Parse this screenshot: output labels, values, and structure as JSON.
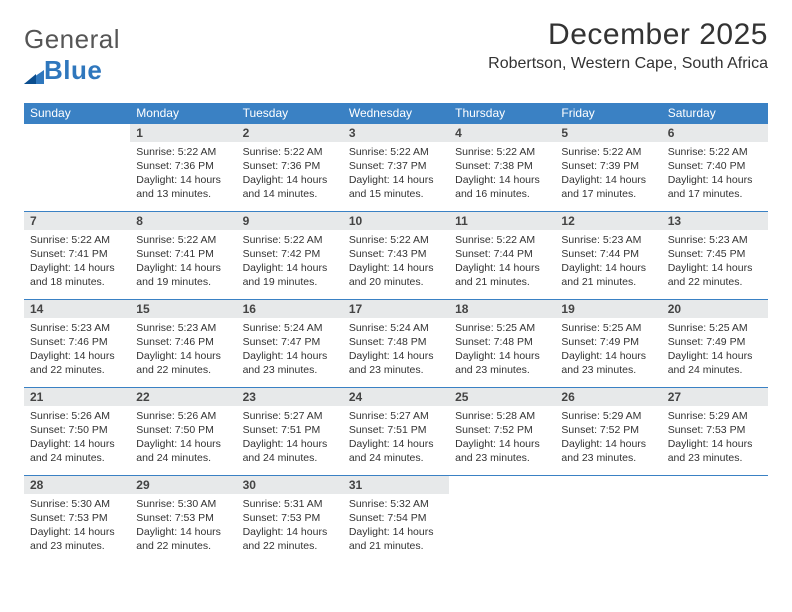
{
  "brand": {
    "part1": "General",
    "part2": "Blue"
  },
  "title": "December 2025",
  "location": "Robertson, Western Cape, South Africa",
  "colors": {
    "header_bg": "#3a81c4",
    "header_text": "#ffffff",
    "daynum_bg": "#e7e9ea",
    "text": "#333333",
    "rule": "#3a81c4"
  },
  "typography": {
    "title_fontsize": 30,
    "location_fontsize": 16,
    "dayhead_fontsize": 12,
    "body_fontsize": 10.5
  },
  "dayNames": [
    "Sunday",
    "Monday",
    "Tuesday",
    "Wednesday",
    "Thursday",
    "Friday",
    "Saturday"
  ],
  "weeks": [
    [
      null,
      {
        "n": "1",
        "sr": "5:22 AM",
        "ss": "7:36 PM",
        "dl": "14 hours and 13 minutes."
      },
      {
        "n": "2",
        "sr": "5:22 AM",
        "ss": "7:36 PM",
        "dl": "14 hours and 14 minutes."
      },
      {
        "n": "3",
        "sr": "5:22 AM",
        "ss": "7:37 PM",
        "dl": "14 hours and 15 minutes."
      },
      {
        "n": "4",
        "sr": "5:22 AM",
        "ss": "7:38 PM",
        "dl": "14 hours and 16 minutes."
      },
      {
        "n": "5",
        "sr": "5:22 AM",
        "ss": "7:39 PM",
        "dl": "14 hours and 17 minutes."
      },
      {
        "n": "6",
        "sr": "5:22 AM",
        "ss": "7:40 PM",
        "dl": "14 hours and 17 minutes."
      }
    ],
    [
      {
        "n": "7",
        "sr": "5:22 AM",
        "ss": "7:41 PM",
        "dl": "14 hours and 18 minutes."
      },
      {
        "n": "8",
        "sr": "5:22 AM",
        "ss": "7:41 PM",
        "dl": "14 hours and 19 minutes."
      },
      {
        "n": "9",
        "sr": "5:22 AM",
        "ss": "7:42 PM",
        "dl": "14 hours and 19 minutes."
      },
      {
        "n": "10",
        "sr": "5:22 AM",
        "ss": "7:43 PM",
        "dl": "14 hours and 20 minutes."
      },
      {
        "n": "11",
        "sr": "5:22 AM",
        "ss": "7:44 PM",
        "dl": "14 hours and 21 minutes."
      },
      {
        "n": "12",
        "sr": "5:23 AM",
        "ss": "7:44 PM",
        "dl": "14 hours and 21 minutes."
      },
      {
        "n": "13",
        "sr": "5:23 AM",
        "ss": "7:45 PM",
        "dl": "14 hours and 22 minutes."
      }
    ],
    [
      {
        "n": "14",
        "sr": "5:23 AM",
        "ss": "7:46 PM",
        "dl": "14 hours and 22 minutes."
      },
      {
        "n": "15",
        "sr": "5:23 AM",
        "ss": "7:46 PM",
        "dl": "14 hours and 22 minutes."
      },
      {
        "n": "16",
        "sr": "5:24 AM",
        "ss": "7:47 PM",
        "dl": "14 hours and 23 minutes."
      },
      {
        "n": "17",
        "sr": "5:24 AM",
        "ss": "7:48 PM",
        "dl": "14 hours and 23 minutes."
      },
      {
        "n": "18",
        "sr": "5:25 AM",
        "ss": "7:48 PM",
        "dl": "14 hours and 23 minutes."
      },
      {
        "n": "19",
        "sr": "5:25 AM",
        "ss": "7:49 PM",
        "dl": "14 hours and 23 minutes."
      },
      {
        "n": "20",
        "sr": "5:25 AM",
        "ss": "7:49 PM",
        "dl": "14 hours and 24 minutes."
      }
    ],
    [
      {
        "n": "21",
        "sr": "5:26 AM",
        "ss": "7:50 PM",
        "dl": "14 hours and 24 minutes."
      },
      {
        "n": "22",
        "sr": "5:26 AM",
        "ss": "7:50 PM",
        "dl": "14 hours and 24 minutes."
      },
      {
        "n": "23",
        "sr": "5:27 AM",
        "ss": "7:51 PM",
        "dl": "14 hours and 24 minutes."
      },
      {
        "n": "24",
        "sr": "5:27 AM",
        "ss": "7:51 PM",
        "dl": "14 hours and 24 minutes."
      },
      {
        "n": "25",
        "sr": "5:28 AM",
        "ss": "7:52 PM",
        "dl": "14 hours and 23 minutes."
      },
      {
        "n": "26",
        "sr": "5:29 AM",
        "ss": "7:52 PM",
        "dl": "14 hours and 23 minutes."
      },
      {
        "n": "27",
        "sr": "5:29 AM",
        "ss": "7:53 PM",
        "dl": "14 hours and 23 minutes."
      }
    ],
    [
      {
        "n": "28",
        "sr": "5:30 AM",
        "ss": "7:53 PM",
        "dl": "14 hours and 23 minutes."
      },
      {
        "n": "29",
        "sr": "5:30 AM",
        "ss": "7:53 PM",
        "dl": "14 hours and 22 minutes."
      },
      {
        "n": "30",
        "sr": "5:31 AM",
        "ss": "7:53 PM",
        "dl": "14 hours and 22 minutes."
      },
      {
        "n": "31",
        "sr": "5:32 AM",
        "ss": "7:54 PM",
        "dl": "14 hours and 21 minutes."
      },
      null,
      null,
      null
    ]
  ],
  "labels": {
    "sunrise": "Sunrise:",
    "sunset": "Sunset:",
    "daylight": "Daylight:"
  }
}
